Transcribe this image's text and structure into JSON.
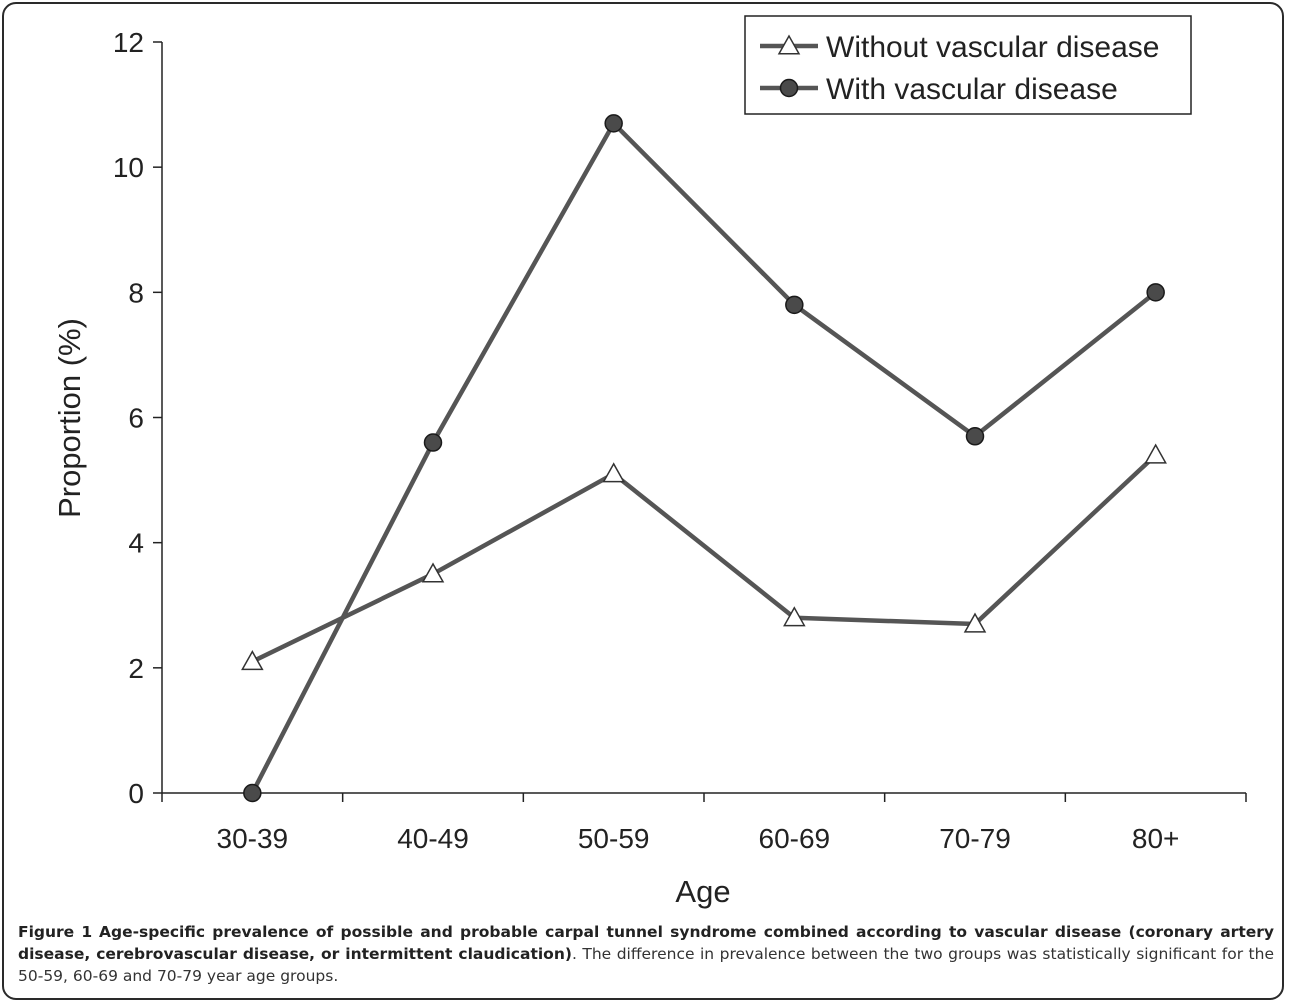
{
  "chart_data": {
    "type": "line",
    "xlabel": "Age",
    "ylabel": "Proportion (%)",
    "ylim": [
      0,
      12
    ],
    "yticks": [
      "0",
      "2",
      "4",
      "6",
      "8",
      "10",
      "12"
    ],
    "categories": [
      "30-39",
      "40-49",
      "50-59",
      "60-69",
      "70-79",
      "80+"
    ],
    "series": [
      {
        "name": "Without vascular disease",
        "marker": "triangle-open",
        "values": [
          2.1,
          3.5,
          5.1,
          2.8,
          2.7,
          5.4
        ]
      },
      {
        "name": "With vascular disease",
        "marker": "circle-filled",
        "values": [
          0.0,
          5.6,
          10.7,
          7.8,
          5.7,
          8.0
        ]
      }
    ],
    "legend_position": "top-right",
    "grid": false,
    "colors": {
      "line": "#555555",
      "marker_fill": "#4a4a4a",
      "axis": "#222222"
    }
  },
  "caption": {
    "label": "Figure 1",
    "title": "Age-specific prevalence of possible and probable carpal tunnel syndrome combined according to vascular disease (coronary artery disease, cerebrovascular disease, or intermittent claudication)",
    "text": ". The difference in prevalence between the two groups was statistically significant for the 50-59, 60-69 and 70-79 year age groups."
  }
}
